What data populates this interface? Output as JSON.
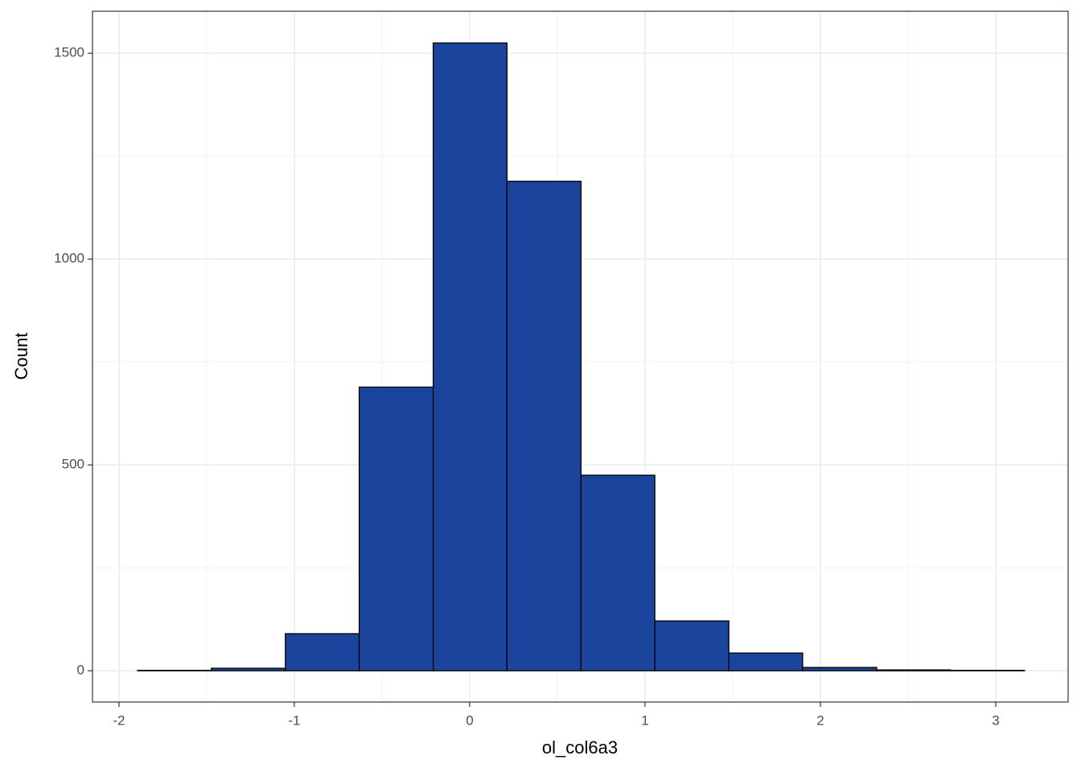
{
  "chart_data": {
    "type": "histogram",
    "x_label": "ol_col6a3",
    "y_label": "Count",
    "bins": [
      -1.894,
      -1.473,
      -1.051,
      -0.63,
      -0.208,
      0.213,
      0.635,
      1.056,
      1.478,
      1.899,
      2.321,
      2.742,
      3.164
    ],
    "values": [
      1,
      6,
      90,
      689,
      1525,
      1189,
      475,
      121,
      43,
      8,
      2,
      1
    ],
    "color": "#1b449c",
    "xlim": [
      -2.151,
      3.413
    ],
    "xticks": [
      -2,
      -1,
      0,
      1,
      2,
      3
    ],
    "x_minor_grid": [
      -1.5,
      -0.5,
      0.5,
      1.5,
      2.5
    ],
    "ylim": [
      -76,
      1602
    ],
    "yticks": [
      0,
      500,
      1000,
      1500
    ],
    "y_minor_grid": [
      250,
      750,
      1250
    ],
    "grid": true
  }
}
